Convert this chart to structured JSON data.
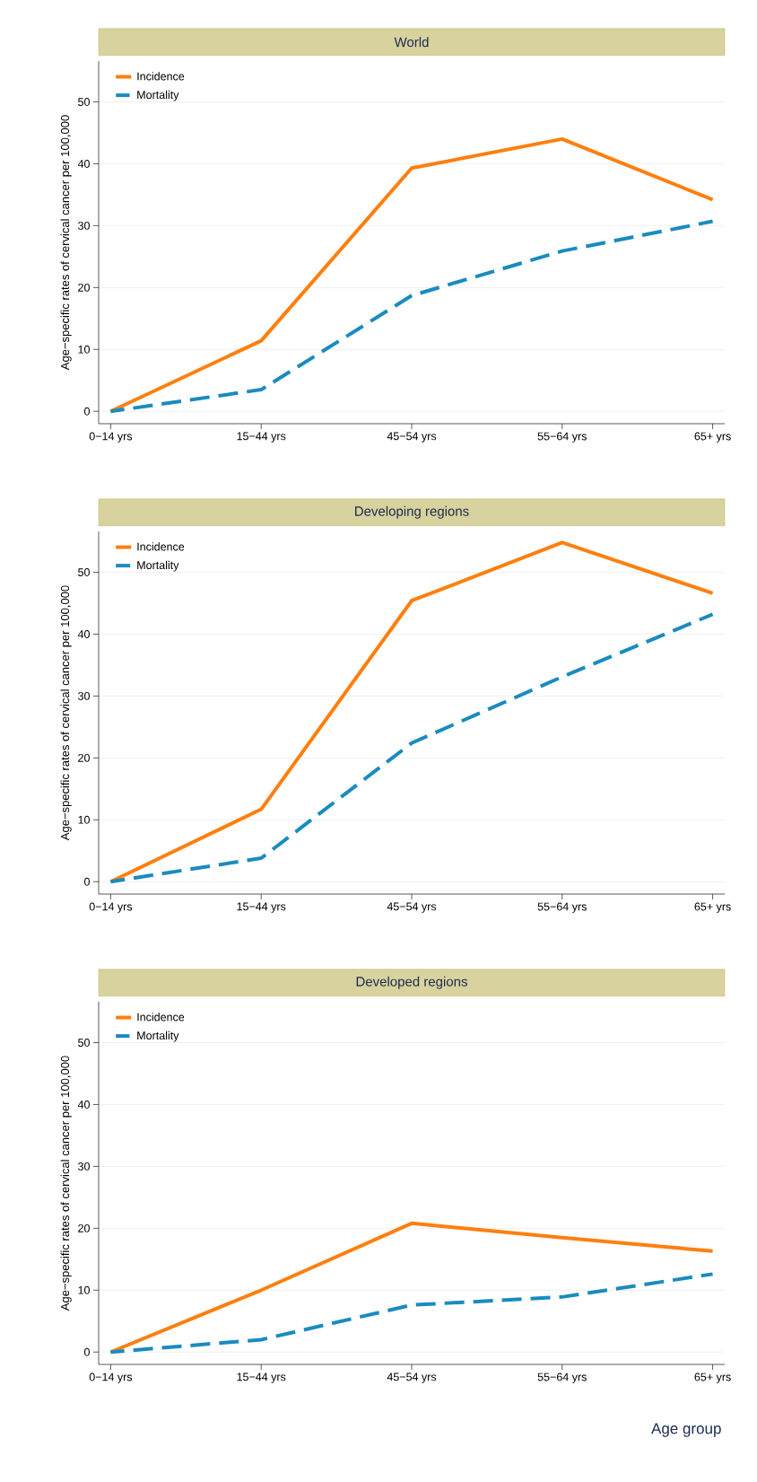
{
  "chart_data": [
    {
      "type": "line",
      "title": "World",
      "ylabel": "Age−specific rates of cervical cancer per 100,000",
      "categories": [
        "0−14 yrs",
        "15−44 yrs",
        "45−54 yrs",
        "55−64 yrs",
        "65+ yrs"
      ],
      "ylim": [
        -2,
        56.6
      ],
      "yticks": [
        0,
        10,
        20,
        30,
        40,
        50
      ],
      "grid": "y",
      "legend": "top left",
      "marker": "none",
      "series": [
        {
          "name": "Incidence",
          "color": "#ff7f0e",
          "line_style": "solid",
          "values": [
            0,
            11.4,
            39.3,
            44,
            34.2
          ]
        },
        {
          "name": "Mortality",
          "color": "#1a8bbf",
          "line_style": "dashed",
          "values": [
            0,
            3.5,
            18.7,
            25.9,
            30.7
          ]
        }
      ]
    },
    {
      "type": "line",
      "title": "Developing regions",
      "ylabel": "Age−specific rates of cervical cancer per 100,000",
      "categories": [
        "0−14 yrs",
        "15−44 yrs",
        "45−54 yrs",
        "55−64 yrs",
        "65+ yrs"
      ],
      "ylim": [
        -2,
        56.6
      ],
      "yticks": [
        0,
        10,
        20,
        30,
        40,
        50
      ],
      "grid": "y",
      "legend": "top left",
      "marker": "none",
      "series": [
        {
          "name": "Incidence",
          "color": "#ff7f0e",
          "line_style": "solid",
          "values": [
            0,
            11.7,
            45.4,
            54.8,
            46.6
          ]
        },
        {
          "name": "Mortality",
          "color": "#1a8bbf",
          "line_style": "dashed",
          "values": [
            0,
            3.8,
            22.4,
            33.1,
            43.2
          ]
        }
      ]
    },
    {
      "type": "line",
      "title": "Developed regions",
      "ylabel": "Age−specific rates of cervical cancer per 100,000",
      "xlabel": "Age group",
      "categories": [
        "0−14 yrs",
        "15−44 yrs",
        "45−54 yrs",
        "55−64 yrs",
        "65+ yrs"
      ],
      "ylim": [
        -2,
        56.6
      ],
      "yticks": [
        0,
        10,
        20,
        30,
        40,
        50
      ],
      "grid": "y",
      "legend": "top left",
      "marker": "none",
      "series": [
        {
          "name": "Incidence",
          "color": "#ff7f0e",
          "line_style": "solid",
          "values": [
            0,
            10,
            20.8,
            18.5,
            16.3
          ]
        },
        {
          "name": "Mortality",
          "color": "#1a8bbf",
          "line_style": "dashed",
          "values": [
            0,
            2,
            7.6,
            8.9,
            12.6
          ]
        }
      ]
    }
  ]
}
